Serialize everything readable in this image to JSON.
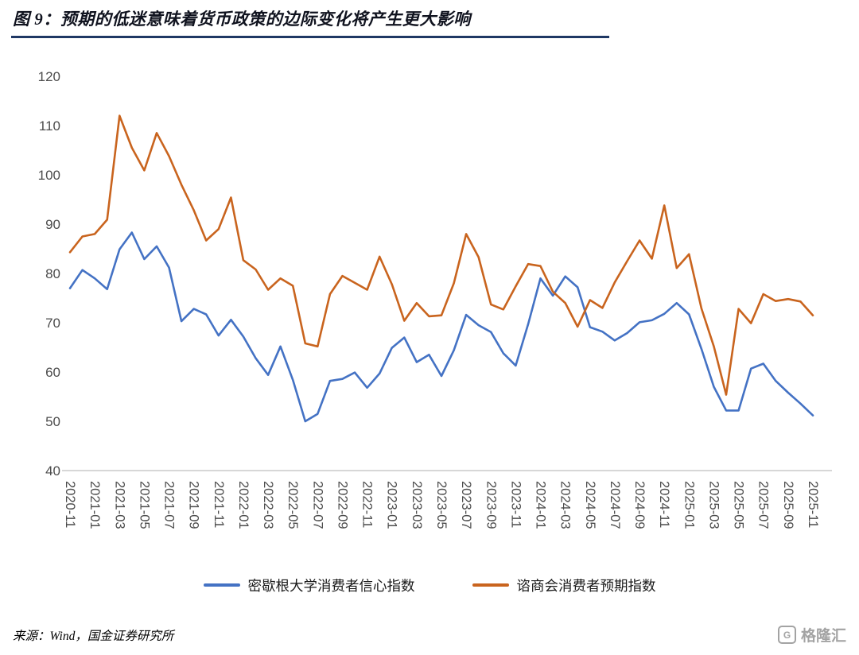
{
  "header": {
    "title": "图 9：预期的低迷意味着货币政策的边际变化将产生更大影响"
  },
  "chart_data": {
    "type": "line",
    "title": "图 9：预期的低迷意味着货币政策的边际变化将产生更大影响",
    "xlabel": "",
    "ylabel": "",
    "ylim": [
      40,
      120
    ],
    "y_ticks": [
      40,
      50,
      60,
      70,
      80,
      90,
      100,
      110,
      120
    ],
    "grid": false,
    "legend_position": "bottom",
    "x_tick_step": 2,
    "x": [
      "2020-11",
      "2020-12",
      "2021-01",
      "2021-02",
      "2021-03",
      "2021-04",
      "2021-05",
      "2021-06",
      "2021-07",
      "2021-08",
      "2021-09",
      "2021-10",
      "2021-11",
      "2021-12",
      "2022-01",
      "2022-02",
      "2022-03",
      "2022-04",
      "2022-05",
      "2022-06",
      "2022-07",
      "2022-08",
      "2022-09",
      "2022-10",
      "2022-11",
      "2022-12",
      "2023-01",
      "2023-02",
      "2023-03",
      "2023-04",
      "2023-05",
      "2023-06",
      "2023-07",
      "2023-08",
      "2023-09",
      "2023-10",
      "2023-11",
      "2023-12",
      "2024-01",
      "2024-02",
      "2024-03",
      "2024-04",
      "2024-05",
      "2024-06",
      "2024-07",
      "2024-08",
      "2024-09",
      "2024-10",
      "2024-11",
      "2024-12",
      "2025-01",
      "2025-02",
      "2025-03",
      "2025-04",
      "2025-05",
      "2025-06",
      "2025-07",
      "2025-08",
      "2025-09",
      "2025-10",
      "2025-11"
    ],
    "series": [
      {
        "name": "密歇根大学消费者信心指数",
        "color": "#4472C4",
        "values": [
          77.0,
          80.7,
          79.0,
          76.8,
          84.9,
          88.3,
          82.9,
          85.5,
          81.2,
          70.3,
          72.8,
          71.7,
          67.4,
          70.6,
          67.2,
          62.8,
          59.4,
          65.2,
          58.4,
          50.0,
          51.5,
          58.2,
          58.6,
          59.9,
          56.8,
          59.7,
          64.9,
          67.0,
          62.0,
          63.5,
          59.2,
          64.4,
          71.6,
          69.5,
          68.1,
          63.8,
          61.3,
          69.7,
          79.0,
          75.5,
          79.4,
          77.2,
          69.1,
          68.2,
          66.4,
          67.9,
          70.1,
          70.5,
          71.8,
          74.0,
          71.7,
          64.7,
          57.0,
          52.2,
          52.2,
          60.7,
          61.7,
          58.2,
          55.8,
          53.6,
          51.2
        ]
      },
      {
        "name": "谘商会消费者预期指数",
        "color": "#C9641E",
        "values": [
          84.3,
          87.5,
          88.0,
          90.9,
          112.0,
          105.5,
          100.9,
          108.5,
          103.8,
          98.0,
          92.8,
          86.7,
          89.0,
          95.4,
          82.7,
          80.8,
          76.7,
          79.0,
          77.5,
          65.8,
          65.2,
          75.8,
          79.5,
          78.1,
          76.7,
          83.4,
          77.8,
          70.4,
          74.0,
          71.3,
          71.5,
          78.0,
          88.0,
          83.3,
          73.7,
          72.7,
          77.4,
          81.9,
          81.5,
          76.3,
          74.0,
          69.2,
          74.6,
          73.0,
          78.2,
          82.5,
          86.7,
          83.0,
          93.8,
          81.1,
          83.9,
          72.9,
          65.2,
          55.4,
          72.8,
          69.9,
          75.8,
          74.4,
          74.8,
          74.3,
          71.5
        ]
      }
    ]
  },
  "footer": {
    "source": "来源：Wind，国金证券研究所",
    "logo_mark": "G",
    "logo_text": "格隆汇"
  }
}
